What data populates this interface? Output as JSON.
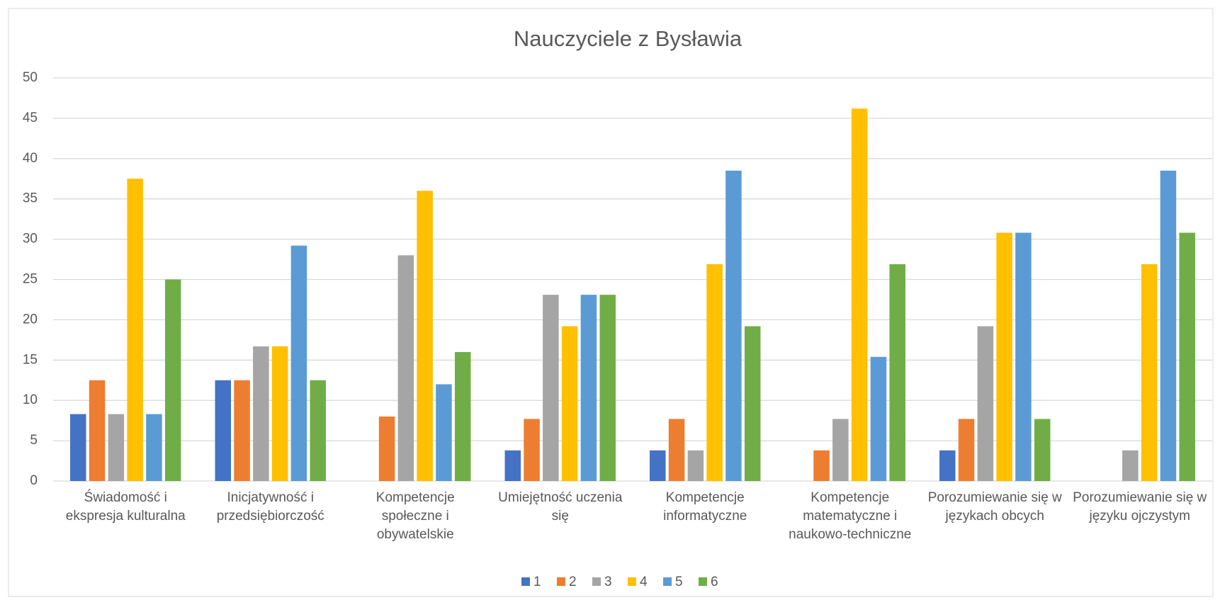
{
  "chart_data": {
    "type": "bar",
    "title": "Nauczyciele z Bysławia",
    "categories": [
      "Świadomość i ekspresja kulturalna",
      "Inicjatywność i przedsiębiorczość",
      "Kompetencje społeczne i obywatelskie",
      "Umiejętność uczenia się",
      "Kompetencje informatyczne",
      "Kompetencje matematyczne i naukowo-techniczne",
      "Porozumiewanie się w językach obcych",
      "Porozumiewanie się w języku ojczystym"
    ],
    "series": [
      {
        "name": "1",
        "color": "#4472c4",
        "values": [
          8.3,
          12.5,
          0,
          3.8,
          3.8,
          0,
          3.8,
          0
        ]
      },
      {
        "name": "2",
        "color": "#ed7d31",
        "values": [
          12.5,
          12.5,
          8,
          7.7,
          7.7,
          3.8,
          7.7,
          0
        ]
      },
      {
        "name": "3",
        "color": "#a5a5a5",
        "values": [
          8.3,
          16.7,
          28,
          23.1,
          3.8,
          7.7,
          19.2,
          3.8
        ]
      },
      {
        "name": "4",
        "color": "#ffc000",
        "values": [
          37.5,
          16.7,
          36,
          19.2,
          26.9,
          46.2,
          30.8,
          26.9
        ]
      },
      {
        "name": "5",
        "color": "#5b9bd5",
        "values": [
          8.3,
          29.2,
          12,
          23.1,
          38.5,
          15.4,
          30.8,
          38.5
        ]
      },
      {
        "name": "6",
        "color": "#70ad47",
        "values": [
          25,
          12.5,
          16,
          23.1,
          19.2,
          26.9,
          7.7,
          30.8
        ]
      }
    ],
    "ylim": [
      0,
      50
    ],
    "yticks": [
      0,
      5,
      10,
      15,
      20,
      25,
      30,
      35,
      40,
      45,
      50
    ],
    "grid": true,
    "legend": "bottom"
  }
}
